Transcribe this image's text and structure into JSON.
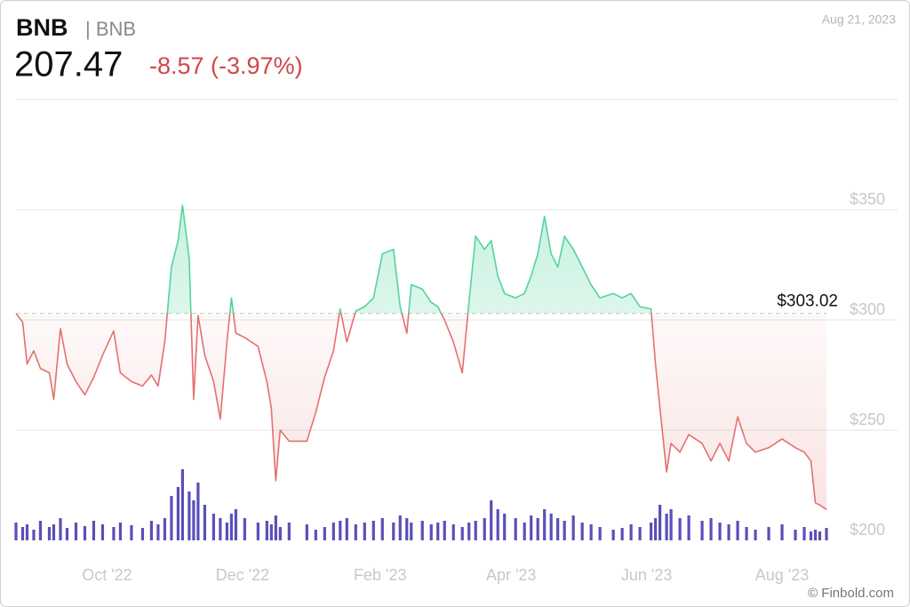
{
  "chart_data": {
    "type": "line",
    "symbol": "BNB",
    "symbol_sub": "| BNB",
    "price": "207.47",
    "change": "-8.57 (-3.97%)",
    "date": "Aug 21, 2023",
    "credit": "© Finbold.com",
    "baseline": 303.02,
    "baseline_label": "$303.02",
    "up_color": "#52d49d",
    "down_color": "#e2716f",
    "volume_color": "#5a4fb8",
    "x": [
      0,
      3,
      5,
      8,
      11,
      15,
      17,
      20,
      23,
      27,
      31,
      35,
      39,
      44,
      47,
      52,
      57,
      61,
      64,
      67,
      70,
      73,
      75,
      78,
      80,
      82,
      85,
      89,
      92,
      95,
      97,
      99,
      103,
      109,
      113,
      115,
      117,
      119,
      123,
      131,
      135,
      139,
      143,
      146,
      149,
      153,
      157,
      161,
      165,
      170,
      173,
      176,
      178,
      183,
      187,
      190,
      193,
      197,
      201,
      204,
      207,
      211,
      214,
      217,
      220,
      225,
      229,
      232,
      235,
      238,
      241,
      244,
      247,
      251,
      255,
      259,
      263,
      269,
      273,
      277,
      281,
      286,
      288,
      290,
      293,
      295,
      299,
      303,
      309,
      313,
      317,
      321,
      325,
      329,
      333,
      339,
      345,
      351,
      355,
      358,
      360,
      362,
      365
    ],
    "values": [
      303,
      299,
      280,
      286,
      278,
      276,
      264,
      296,
      280,
      272,
      266,
      274,
      284,
      295,
      276,
      272,
      270,
      275,
      270,
      290,
      324,
      336,
      352,
      328,
      264,
      302,
      284,
      272,
      255,
      290,
      310,
      294,
      292,
      288,
      272,
      260,
      227,
      250,
      245,
      245,
      258,
      274,
      286,
      305,
      290,
      304,
      306,
      310,
      330,
      332,
      306,
      294,
      316,
      314,
      308,
      306,
      300,
      290,
      276,
      308,
      338,
      332,
      336,
      320,
      312,
      310,
      312,
      320,
      330,
      347,
      330,
      324,
      338,
      332,
      324,
      316,
      310,
      312,
      310,
      312,
      306,
      305,
      280,
      260,
      231,
      244,
      240,
      248,
      244,
      236,
      244,
      236,
      256,
      244,
      240,
      242,
      246,
      242,
      240,
      236,
      217,
      216,
      214
    ],
    "volume": [
      20,
      15,
      18,
      12,
      22,
      15,
      18,
      25,
      14,
      20,
      16,
      22,
      18,
      15,
      20,
      17,
      14,
      22,
      18,
      25,
      50,
      60,
      80,
      55,
      45,
      65,
      40,
      30,
      25,
      20,
      30,
      35,
      25,
      20,
      22,
      18,
      28,
      15,
      20,
      18,
      12,
      15,
      20,
      22,
      25,
      18,
      20,
      22,
      25,
      20,
      28,
      25,
      20,
      22,
      18,
      20,
      22,
      18,
      15,
      20,
      22,
      25,
      45,
      35,
      30,
      25,
      20,
      28,
      25,
      35,
      30,
      25,
      22,
      28,
      20,
      18,
      15,
      12,
      14,
      18,
      15,
      20,
      25,
      40,
      30,
      35,
      25,
      28,
      22,
      25,
      20,
      18,
      22,
      15,
      12,
      15,
      18,
      12,
      15,
      10,
      12,
      10,
      14
    ],
    "volume_lim": [
      0,
      100
    ],
    "xlim": [
      0,
      365
    ],
    "xticks": [
      {
        "value": 41,
        "label": "Oct '22"
      },
      {
        "value": 102,
        "label": "Dec '22"
      },
      {
        "value": 164,
        "label": "Feb '23"
      },
      {
        "value": 223,
        "label": "Apr '23"
      },
      {
        "value": 284,
        "label": "Jun '23"
      },
      {
        "value": 345,
        "label": "Aug '23"
      }
    ],
    "ylim": [
      200,
      400
    ],
    "yticks": [
      {
        "value": 200,
        "label": "$200"
      },
      {
        "value": 250,
        "label": "$250"
      },
      {
        "value": 300,
        "label": "$300"
      },
      {
        "value": 350,
        "label": "$350"
      }
    ],
    "grid": true
  }
}
